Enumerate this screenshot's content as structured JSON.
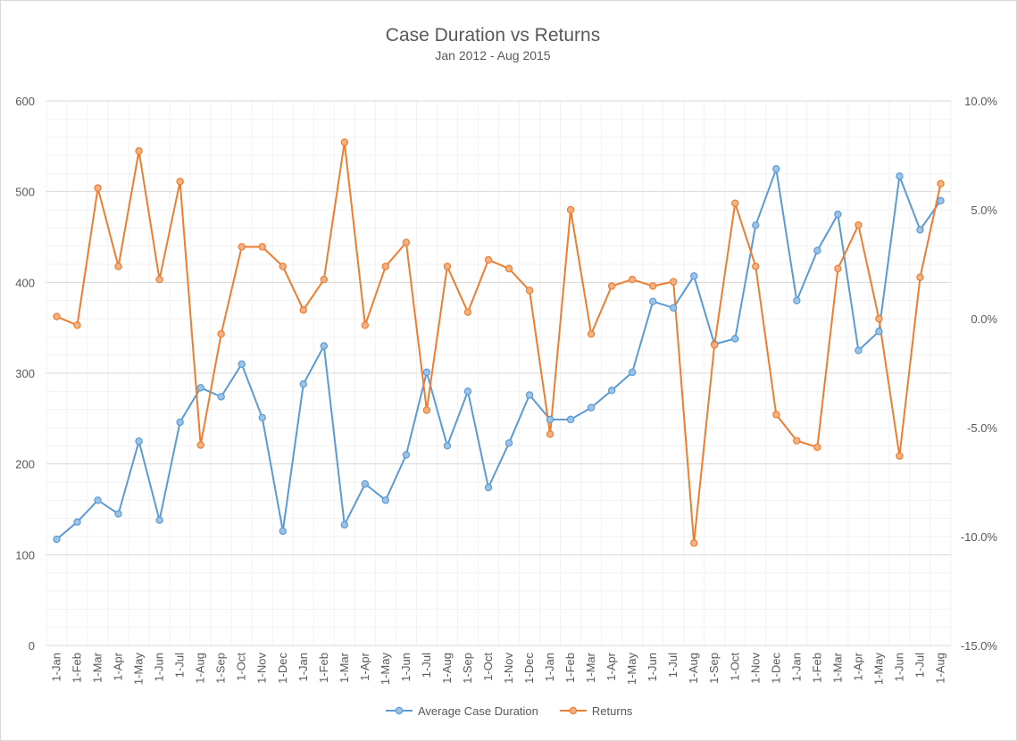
{
  "chart_data": {
    "type": "line",
    "title": "Case Duration vs Returns",
    "subtitle": "Jan 2012 - Aug 2015",
    "x": [
      "1-Jan",
      "1-Feb",
      "1-Mar",
      "1-Apr",
      "1-May",
      "1-Jun",
      "1-Jul",
      "1-Aug",
      "1-Sep",
      "1-Oct",
      "1-Nov",
      "1-Dec",
      "1-Jan",
      "1-Feb",
      "1-Mar",
      "1-Apr",
      "1-May",
      "1-Jun",
      "1-Jul",
      "1-Aug",
      "1-Sep",
      "1-Oct",
      "1-Nov",
      "1-Dec",
      "1-Jan",
      "1-Feb",
      "1-Mar",
      "1-Apr",
      "1-May",
      "1-Jun",
      "1-Jul",
      "1-Aug",
      "1-Sep",
      "1-Oct",
      "1-Nov",
      "1-Dec",
      "1-Jan",
      "1-Feb",
      "1-Mar",
      "1-Apr",
      "1-May",
      "1-Jun",
      "1-Jul",
      "1-Aug"
    ],
    "y_left": {
      "min": 0,
      "max": 600,
      "step": 100,
      "ticks": [
        "0",
        "100",
        "200",
        "300",
        "400",
        "500",
        "600"
      ]
    },
    "y_right": {
      "min": -15,
      "max": 10,
      "step": 5,
      "ticks": [
        "-15.0%",
        "-10.0%",
        "-5.0%",
        "0.0%",
        "5.0%",
        "10.0%"
      ]
    },
    "grid": true,
    "legend": "bottom",
    "series": [
      {
        "name": "Average Case Duration",
        "axis": "left",
        "color": "#5b9bd5",
        "marker_fill": "#9dc3e6",
        "values": [
          117,
          136,
          160,
          145,
          225,
          138,
          246,
          284,
          274,
          310,
          251,
          126,
          288,
          330,
          133,
          178,
          160,
          210,
          301,
          220,
          280,
          174,
          223,
          276,
          249,
          249,
          262,
          281,
          301,
          379,
          372,
          407,
          332,
          338,
          463,
          525,
          380,
          435,
          475,
          325,
          346,
          517,
          458,
          490
        ]
      },
      {
        "name": "Returns",
        "axis": "right",
        "color": "#ed7d31",
        "marker_fill": "#f4b183",
        "values": [
          0.1,
          -0.3,
          6.0,
          2.4,
          7.7,
          1.8,
          6.3,
          -5.8,
          -0.7,
          3.3,
          3.3,
          2.4,
          0.4,
          1.8,
          8.1,
          -0.3,
          2.4,
          3.5,
          -4.2,
          2.4,
          0.3,
          2.7,
          2.3,
          1.3,
          -5.3,
          5.0,
          -0.7,
          1.5,
          1.8,
          1.5,
          1.7,
          -10.3,
          -1.2,
          5.3,
          2.4,
          -4.4,
          -5.6,
          -5.9,
          2.3,
          4.3,
          0.0,
          -6.3,
          1.9,
          6.2
        ]
      }
    ]
  }
}
